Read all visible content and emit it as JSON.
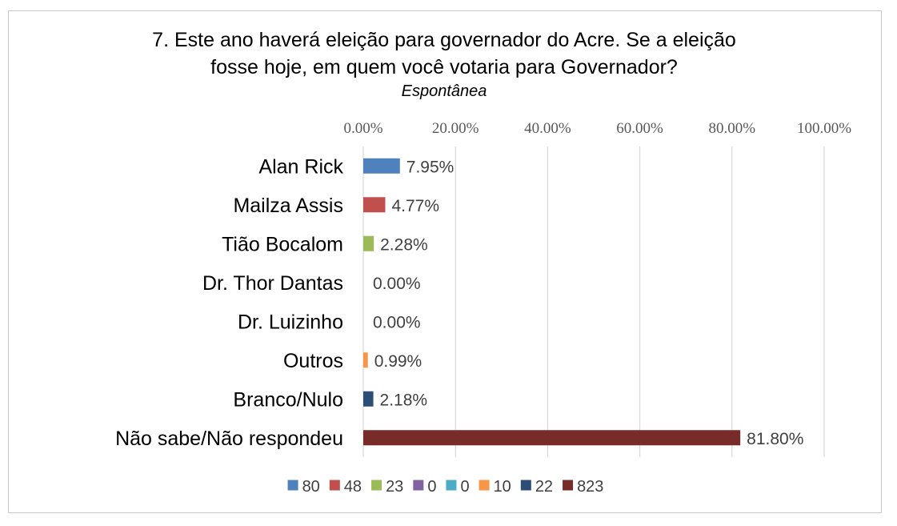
{
  "chart_data": {
    "type": "bar",
    "orientation": "horizontal",
    "title_lines": [
      "7. Este ano haverá eleição para governador do Acre. Se a eleição",
      "fosse hoje, em quem você votaria para Governador?"
    ],
    "subtitle": "Espontânea",
    "xlim": [
      0,
      100
    ],
    "x_ticks": [
      "0.00%",
      "20.00%",
      "40.00%",
      "60.00%",
      "80.00%",
      "100.00%"
    ],
    "grid": true,
    "legend_position": "bottom",
    "categories": [
      "Alan Rick",
      "Mailza Assis",
      "Tião Bocalom",
      "Dr. Thor Dantas",
      "Dr. Luizinho",
      "Outros",
      "Branco/Nulo",
      "Não sabe/Não respondeu"
    ],
    "values": [
      7.95,
      4.77,
      2.28,
      0.0,
      0.0,
      0.99,
      2.18,
      81.8
    ],
    "data_labels": [
      "7.95%",
      "4.77%",
      "2.28%",
      "0.00%",
      "0.00%",
      "0.99%",
      "2.18%",
      "81.80%"
    ],
    "colors": [
      "#4f81bd",
      "#c0504d",
      "#9bbb59",
      "#8064a2",
      "#4bacc6",
      "#f79646",
      "#2c4d75",
      "#772c2a"
    ],
    "legend": [
      "80",
      "48",
      "23",
      "0",
      "0",
      "10",
      "22",
      "823"
    ]
  }
}
